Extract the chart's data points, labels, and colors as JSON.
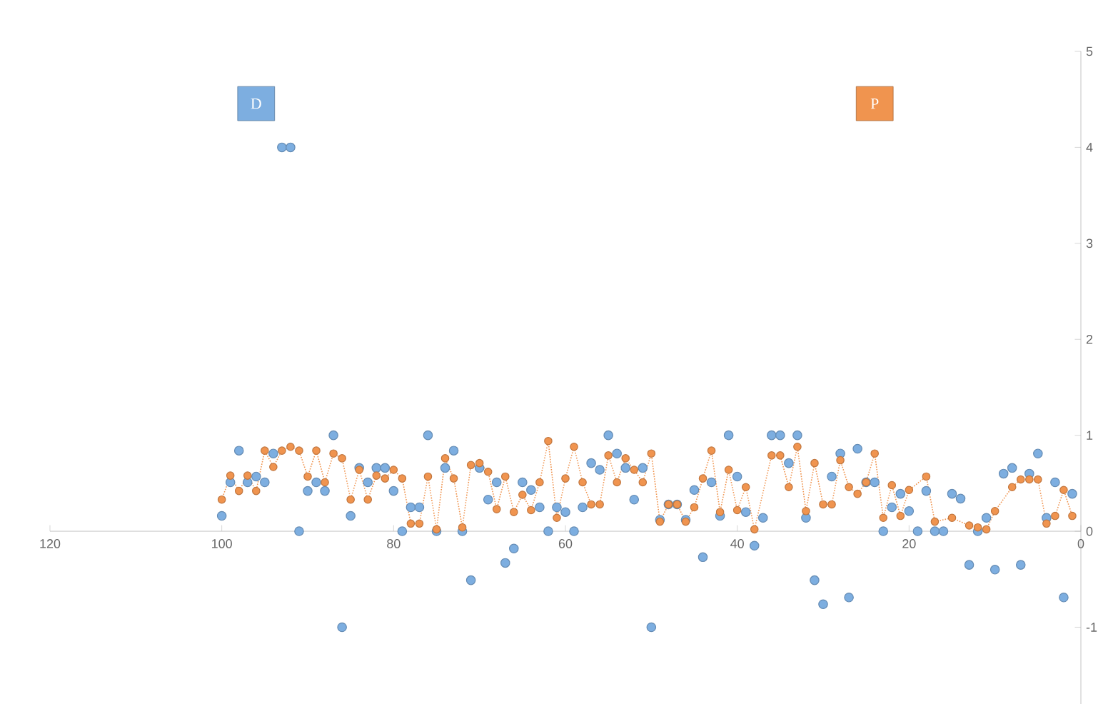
{
  "chart_data": {
    "type": "scatter",
    "xlim": [
      120,
      0
    ],
    "ylim": [
      -1.8,
      5
    ],
    "xticks": [
      120,
      100,
      80,
      60,
      40,
      20,
      0
    ],
    "yticks": [
      -1,
      0,
      1,
      2,
      3,
      4,
      5
    ],
    "legend": "top",
    "marker": "circle",
    "series": [
      {
        "name": "D",
        "color": "#7daee0",
        "x": [
          100,
          99,
          98,
          97,
          96,
          95,
          94,
          93,
          92,
          91,
          90,
          89,
          88,
          87,
          86,
          85,
          84,
          83,
          82,
          81,
          80,
          79,
          78,
          77,
          76,
          75,
          74,
          73,
          72,
          71,
          70,
          69,
          68,
          67,
          66,
          65,
          64,
          63,
          62,
          61,
          60,
          59,
          58,
          57,
          56,
          55,
          54,
          53,
          52,
          51,
          50,
          49,
          48,
          47,
          46,
          45,
          44,
          43,
          42,
          41,
          40,
          39,
          38,
          37,
          36,
          35,
          34,
          33,
          32,
          31,
          30,
          29,
          28,
          27,
          26,
          25,
          24,
          23,
          22,
          21,
          20,
          19,
          18,
          17,
          16,
          15,
          14,
          13,
          12,
          11,
          10,
          9,
          8,
          7,
          6,
          5,
          4,
          3,
          2,
          1
        ],
        "values": [
          0.16,
          0.51,
          0.84,
          0.51,
          0.57,
          0.51,
          0.81,
          4,
          4,
          0,
          0.42,
          0.51,
          0.42,
          1,
          -1,
          0.16,
          0.66,
          0.51,
          0.66,
          0.66,
          0.42,
          0,
          0.25,
          0.25,
          1,
          0,
          0.66,
          0.84,
          0,
          -0.51,
          0.66,
          0.33,
          0.51,
          -0.33,
          -0.18,
          0.51,
          0.43,
          0.25,
          0,
          0.25,
          0.2,
          0,
          0.25,
          0.71,
          0.64,
          1,
          0.81,
          0.66,
          0.33,
          0.66,
          -1,
          0.12,
          0.28,
          0.28,
          0.12,
          0.43,
          -0.27,
          0.51,
          0.16,
          1,
          0.57,
          0.2,
          -0.15,
          0.14,
          1,
          1,
          0.71,
          1,
          0.14,
          -0.51,
          -0.76,
          0.57,
          0.81,
          -0.69,
          0.86,
          0.51,
          0.51,
          0,
          0.25,
          0.39,
          0.21,
          0,
          0.42,
          0,
          0,
          0.39,
          0.34,
          -0.35,
          0,
          0.14,
          -0.4,
          0.6,
          0.66,
          -0.35,
          0.6,
          0.81,
          0.14,
          0.51,
          -0.69,
          0.39
        ]
      },
      {
        "name": "P",
        "color": "#f0944f",
        "type": "line",
        "line_style": "dotted",
        "x": [
          100,
          99,
          98,
          97,
          96,
          95,
          94,
          93,
          92,
          91,
          90,
          89,
          88,
          87,
          86,
          85,
          84,
          83,
          82,
          81,
          80,
          79,
          78,
          77,
          76,
          75,
          74,
          73,
          72,
          71,
          70,
          69,
          68,
          67,
          66,
          65,
          64,
          63,
          62,
          61,
          60,
          59,
          58,
          57,
          56,
          55,
          54,
          53,
          52,
          51,
          50,
          49,
          48,
          47,
          46,
          45,
          44,
          43,
          42,
          41,
          40,
          39,
          38,
          36,
          35,
          34,
          33,
          32,
          31,
          30,
          29,
          28,
          27,
          26,
          25,
          24,
          23,
          22,
          21,
          20,
          18,
          17,
          15,
          13,
          12,
          11,
          10,
          8,
          7,
          6,
          5,
          4,
          3,
          2,
          1
        ],
        "values": [
          0.33,
          0.58,
          0.42,
          0.58,
          0.42,
          0.84,
          0.67,
          0.84,
          0.88,
          0.84,
          0.57,
          0.84,
          0.51,
          0.81,
          0.76,
          0.33,
          0.64,
          0.33,
          0.58,
          0.55,
          0.64,
          0.55,
          0.08,
          0.08,
          0.57,
          0.02,
          0.76,
          0.55,
          0.04,
          0.69,
          0.71,
          0.62,
          0.23,
          0.57,
          0.2,
          0.38,
          0.22,
          0.51,
          0.94,
          0.14,
          0.55,
          0.88,
          0.51,
          0.28,
          0.28,
          0.79,
          0.51,
          0.76,
          0.64,
          0.51,
          0.81,
          0.1,
          0.28,
          0.28,
          0.1,
          0.25,
          0.55,
          0.84,
          0.2,
          0.64,
          0.22,
          0.46,
          0.02,
          0.79,
          0.79,
          0.46,
          0.88,
          0.21,
          0.71,
          0.28,
          0.28,
          0.74,
          0.46,
          0.39,
          0.51,
          0.81,
          0.14,
          0.48,
          0.16,
          0.43,
          0.57,
          0.1,
          0.14,
          0.06,
          0.04,
          0.02,
          0.21,
          0.46,
          0.54,
          0.54,
          0.54,
          0.08,
          0.16,
          0.43,
          0.16
        ]
      }
    ]
  }
}
